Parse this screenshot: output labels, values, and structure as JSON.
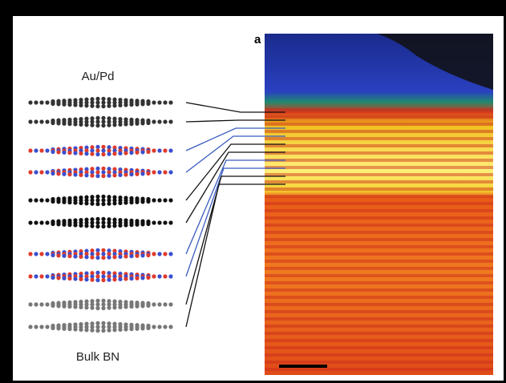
{
  "panel_label": "a",
  "top_label": "Au/Pd",
  "bottom_label": "Bulk BN"
}
